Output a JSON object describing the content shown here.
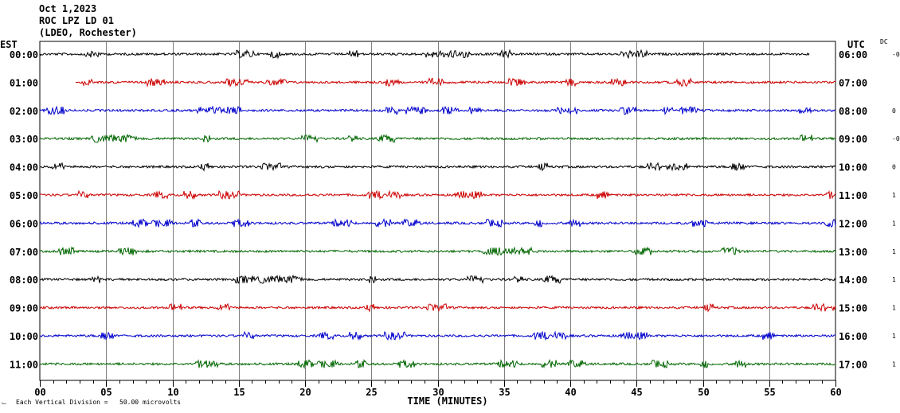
{
  "header": {
    "date": "Oct 1,2023",
    "station": "ROC LPZ LD 01",
    "network": "(LDEO, Rochester)"
  },
  "left_tz": "EST",
  "right_tz": "UTC",
  "dc_label": "DC",
  "footer": {
    "scale_note": "Each Vertical Division =   50.00 microvolts"
  },
  "chart_data": {
    "type": "line",
    "title": "",
    "xlabel": "TIME (MINUTES)",
    "ylabel": "",
    "xlim": [
      0,
      60
    ],
    "x_ticks": [
      "00",
      "05",
      "10",
      "15",
      "20",
      "25",
      "30",
      "35",
      "40",
      "45",
      "50",
      "55",
      "60"
    ],
    "grid": true,
    "series_colors": [
      "#000000",
      "#cc0000",
      "#0000cc",
      "#006600"
    ],
    "rows": [
      {
        "est": "00:00",
        "utc": "06:00",
        "dc": "-0",
        "color": "#000000",
        "start_min": 0,
        "end_min": 58
      },
      {
        "est": "01:00",
        "utc": "07:00",
        "dc": "",
        "color": "#cc0000",
        "start_min": 2.7,
        "end_min": 60
      },
      {
        "est": "02:00",
        "utc": "08:00",
        "dc": "0",
        "color": "#0000cc",
        "start_min": 0,
        "end_min": 60
      },
      {
        "est": "03:00",
        "utc": "09:00",
        "dc": "-0",
        "color": "#006600",
        "start_min": 0,
        "end_min": 60
      },
      {
        "est": "04:00",
        "utc": "10:00",
        "dc": "0",
        "color": "#000000",
        "start_min": 0,
        "end_min": 60
      },
      {
        "est": "05:00",
        "utc": "11:00",
        "dc": "1",
        "color": "#cc0000",
        "start_min": 0,
        "end_min": 60
      },
      {
        "est": "06:00",
        "utc": "12:00",
        "dc": "1",
        "color": "#0000cc",
        "start_min": 0,
        "end_min": 60
      },
      {
        "est": "07:00",
        "utc": "13:00",
        "dc": "1",
        "color": "#006600",
        "start_min": 0,
        "end_min": 60
      },
      {
        "est": "08:00",
        "utc": "14:00",
        "dc": "1",
        "color": "#000000",
        "start_min": 0,
        "end_min": 60
      },
      {
        "est": "09:00",
        "utc": "15:00",
        "dc": "1",
        "color": "#cc0000",
        "start_min": 0,
        "end_min": 60
      },
      {
        "est": "10:00",
        "utc": "16:00",
        "dc": "1",
        "color": "#0000cc",
        "start_min": 0,
        "end_min": 60
      },
      {
        "est": "11:00",
        "utc": "17:00",
        "dc": "1",
        "color": "#006600",
        "start_min": 0,
        "end_min": 60
      }
    ]
  }
}
